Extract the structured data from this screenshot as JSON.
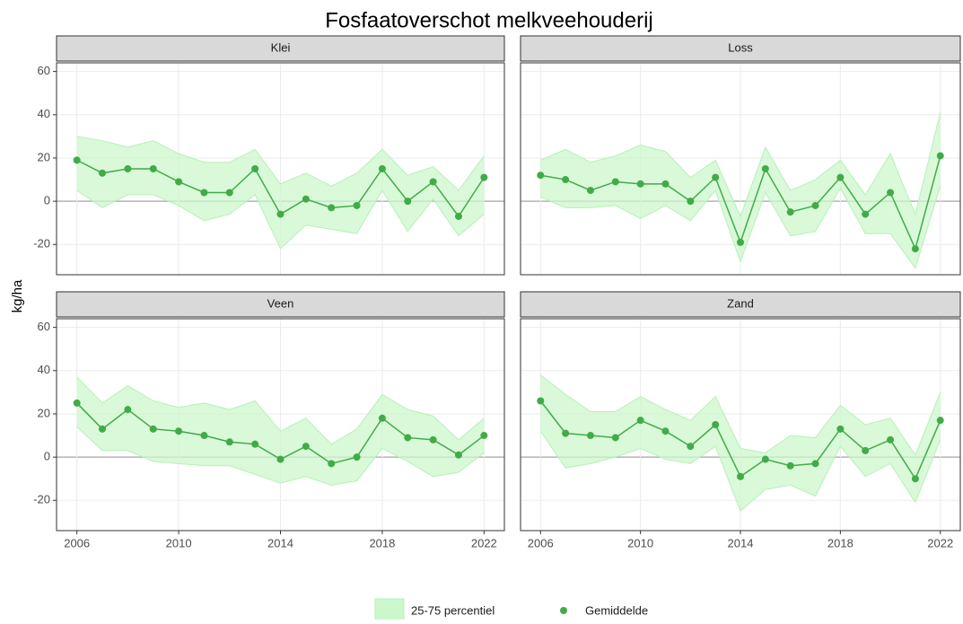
{
  "title": "Fosfaatoverschot melkveehouderij",
  "y_label": "kg/ha",
  "chart_data": [
    {
      "type": "line",
      "title": "Klei",
      "x": [
        2006,
        2007,
        2008,
        2009,
        2010,
        2011,
        2012,
        2013,
        2014,
        2015,
        2016,
        2017,
        2018,
        2019,
        2020,
        2021,
        2022
      ],
      "xlim": [
        2005.2,
        2022.8
      ],
      "xticks": [
        2006,
        2010,
        2014,
        2018,
        2022
      ],
      "ylim": [
        -34,
        64
      ],
      "yticks": [
        -20,
        0,
        20,
        40,
        60
      ],
      "grid": true,
      "series": [
        {
          "name": "25-75 percentiel",
          "color": "#ccf7cc",
          "lower": [
            5,
            -3,
            3,
            3,
            -2,
            -9,
            -6,
            3,
            -22,
            -11,
            -13,
            -15,
            5,
            -14,
            1,
            -16,
            -6
          ],
          "upper": [
            30,
            28,
            25,
            28,
            22,
            18,
            18,
            24,
            8,
            13,
            7,
            13,
            24,
            12,
            16,
            5,
            21
          ]
        },
        {
          "name": "Gemiddelde",
          "color": "#41ab48",
          "values": [
            19,
            13,
            15,
            15,
            9,
            4,
            4,
            15,
            -6,
            1,
            -3,
            -2,
            15,
            0,
            9,
            -7,
            11
          ]
        }
      ]
    },
    {
      "type": "line",
      "title": "Loss",
      "x": [
        2006,
        2007,
        2008,
        2009,
        2010,
        2011,
        2012,
        2013,
        2014,
        2015,
        2016,
        2017,
        2018,
        2019,
        2020,
        2021,
        2022
      ],
      "xlim": [
        2005.2,
        2022.8
      ],
      "xticks": [
        2006,
        2010,
        2014,
        2018,
        2022
      ],
      "ylim": [
        -34,
        64
      ],
      "yticks": [
        -20,
        0,
        20,
        40,
        60
      ],
      "grid": true,
      "series": [
        {
          "name": "25-75 percentiel",
          "color": "#ccf7cc",
          "lower": [
            2,
            -3,
            -3,
            -2,
            -8,
            -2,
            -9,
            5,
            -28,
            4,
            -16,
            -14,
            6,
            -15,
            -15,
            -31,
            7
          ],
          "upper": [
            19,
            24,
            18,
            21,
            26,
            23,
            11,
            19,
            -7,
            25,
            5,
            10,
            19,
            3,
            22,
            -6,
            41
          ]
        },
        {
          "name": "Gemiddelde",
          "color": "#41ab48",
          "values": [
            12,
            10,
            5,
            9,
            8,
            8,
            0,
            11,
            -19,
            15,
            -5,
            -2,
            11,
            -6,
            4,
            -22,
            21
          ]
        }
      ]
    },
    {
      "type": "line",
      "title": "Veen",
      "x": [
        2006,
        2007,
        2008,
        2009,
        2010,
        2011,
        2012,
        2013,
        2014,
        2015,
        2016,
        2017,
        2018,
        2019,
        2020,
        2021,
        2022
      ],
      "xlim": [
        2005.2,
        2022.8
      ],
      "xticks": [
        2006,
        2010,
        2014,
        2018,
        2022
      ],
      "ylim": [
        -34,
        64
      ],
      "yticks": [
        -20,
        0,
        20,
        40,
        60
      ],
      "grid": true,
      "series": [
        {
          "name": "25-75 percentiel",
          "color": "#ccf7cc",
          "lower": [
            14,
            3,
            3,
            -2,
            -3,
            -4,
            -4,
            -8,
            -12,
            -9,
            -13,
            -11,
            4,
            -2,
            -9,
            -7,
            2
          ],
          "upper": [
            37,
            25,
            33,
            26,
            23,
            25,
            22,
            26,
            12,
            18,
            6,
            13,
            29,
            22,
            19,
            8,
            18
          ]
        },
        {
          "name": "Gemiddelde",
          "color": "#41ab48",
          "values": [
            25,
            13,
            22,
            13,
            12,
            10,
            7,
            6,
            -1,
            5,
            -3,
            0,
            18,
            9,
            8,
            1,
            10
          ]
        }
      ]
    },
    {
      "type": "line",
      "title": "Zand",
      "x": [
        2006,
        2007,
        2008,
        2009,
        2010,
        2011,
        2012,
        2013,
        2014,
        2015,
        2016,
        2017,
        2018,
        2019,
        2020,
        2021,
        2022
      ],
      "xlim": [
        2005.2,
        2022.8
      ],
      "xticks": [
        2006,
        2010,
        2014,
        2018,
        2022
      ],
      "ylim": [
        -34,
        64
      ],
      "yticks": [
        -20,
        0,
        20,
        40,
        60
      ],
      "grid": true,
      "series": [
        {
          "name": "25-75 percentiel",
          "color": "#ccf7cc",
          "lower": [
            12,
            -5,
            -3,
            0,
            4,
            -1,
            -3,
            5,
            -25,
            -15,
            -13,
            -18,
            5,
            -9,
            -3,
            -21,
            8
          ],
          "upper": [
            38,
            29,
            21,
            21,
            28,
            22,
            17,
            28,
            4,
            2,
            10,
            9,
            24,
            15,
            18,
            1,
            30
          ]
        },
        {
          "name": "Gemiddelde",
          "color": "#41ab48",
          "values": [
            26,
            11,
            10,
            9,
            17,
            12,
            5,
            15,
            -9,
            -1,
            -4,
            -3,
            13,
            3,
            8,
            -10,
            17
          ]
        }
      ]
    }
  ]
}
